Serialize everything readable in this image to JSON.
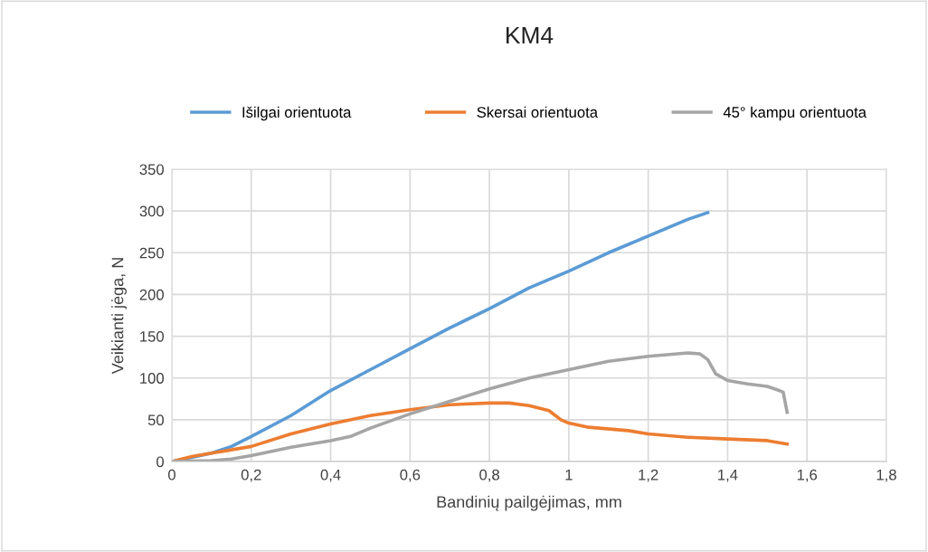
{
  "chart_data": {
    "type": "line",
    "title": "KM4",
    "xlabel": "Bandinių pailgėjimas, mm",
    "ylabel": "Veikianti jėga, N",
    "xlim": [
      0,
      1.8
    ],
    "xticks": [
      {
        "value": 0,
        "label": "0"
      },
      {
        "value": 0.2,
        "label": "0,2"
      },
      {
        "value": 0.4,
        "label": "0,4"
      },
      {
        "value": 0.6,
        "label": "0,6"
      },
      {
        "value": 0.8,
        "label": "0,8"
      },
      {
        "value": 1,
        "label": "1"
      },
      {
        "value": 1.2,
        "label": "1,2"
      },
      {
        "value": 1.4,
        "label": "1,4"
      },
      {
        "value": 1.6,
        "label": "1,6"
      },
      {
        "value": 1.8,
        "label": "1,8"
      }
    ],
    "ylim": [
      0,
      350
    ],
    "yticks": [
      0,
      50,
      100,
      150,
      200,
      250,
      300,
      350
    ],
    "grid": true,
    "legend": "top",
    "marker": "none",
    "line_style": "solid",
    "series": [
      {
        "name": "Išilgai orientuota",
        "color": "#5b9bd5",
        "x": [
          0,
          0.05,
          0.1,
          0.15,
          0.2,
          0.3,
          0.4,
          0.5,
          0.6,
          0.7,
          0.8,
          0.9,
          1.0,
          1.1,
          1.2,
          1.3,
          1.35
        ],
        "values": [
          0,
          5,
          10,
          18,
          30,
          55,
          85,
          110,
          135,
          160,
          183,
          208,
          228,
          250,
          270,
          290,
          298
        ]
      },
      {
        "name": "Skersai orientuota",
        "color": "#ed7d31",
        "x": [
          0,
          0.05,
          0.1,
          0.2,
          0.3,
          0.4,
          0.5,
          0.6,
          0.7,
          0.8,
          0.85,
          0.9,
          0.95,
          0.98,
          1.0,
          1.05,
          1.15,
          1.2,
          1.3,
          1.4,
          1.5,
          1.55
        ],
        "values": [
          0,
          6,
          10,
          18,
          33,
          45,
          55,
          62,
          68,
          70,
          70,
          67,
          61,
          50,
          46,
          41,
          37,
          33,
          29,
          27,
          25,
          21
        ]
      },
      {
        "name": "45° kampu orientuota",
        "color": "#a5a5a5",
        "x": [
          0,
          0.1,
          0.15,
          0.2,
          0.3,
          0.4,
          0.45,
          0.5,
          0.6,
          0.7,
          0.8,
          0.9,
          1.0,
          1.1,
          1.2,
          1.3,
          1.33,
          1.35,
          1.37,
          1.4,
          1.45,
          1.5,
          1.53,
          1.54,
          1.55
        ],
        "values": [
          0,
          1,
          3,
          7,
          17,
          25,
          30,
          40,
          57,
          72,
          87,
          100,
          110,
          120,
          126,
          130,
          129,
          122,
          105,
          97,
          93,
          90,
          85,
          83,
          59
        ]
      }
    ]
  }
}
